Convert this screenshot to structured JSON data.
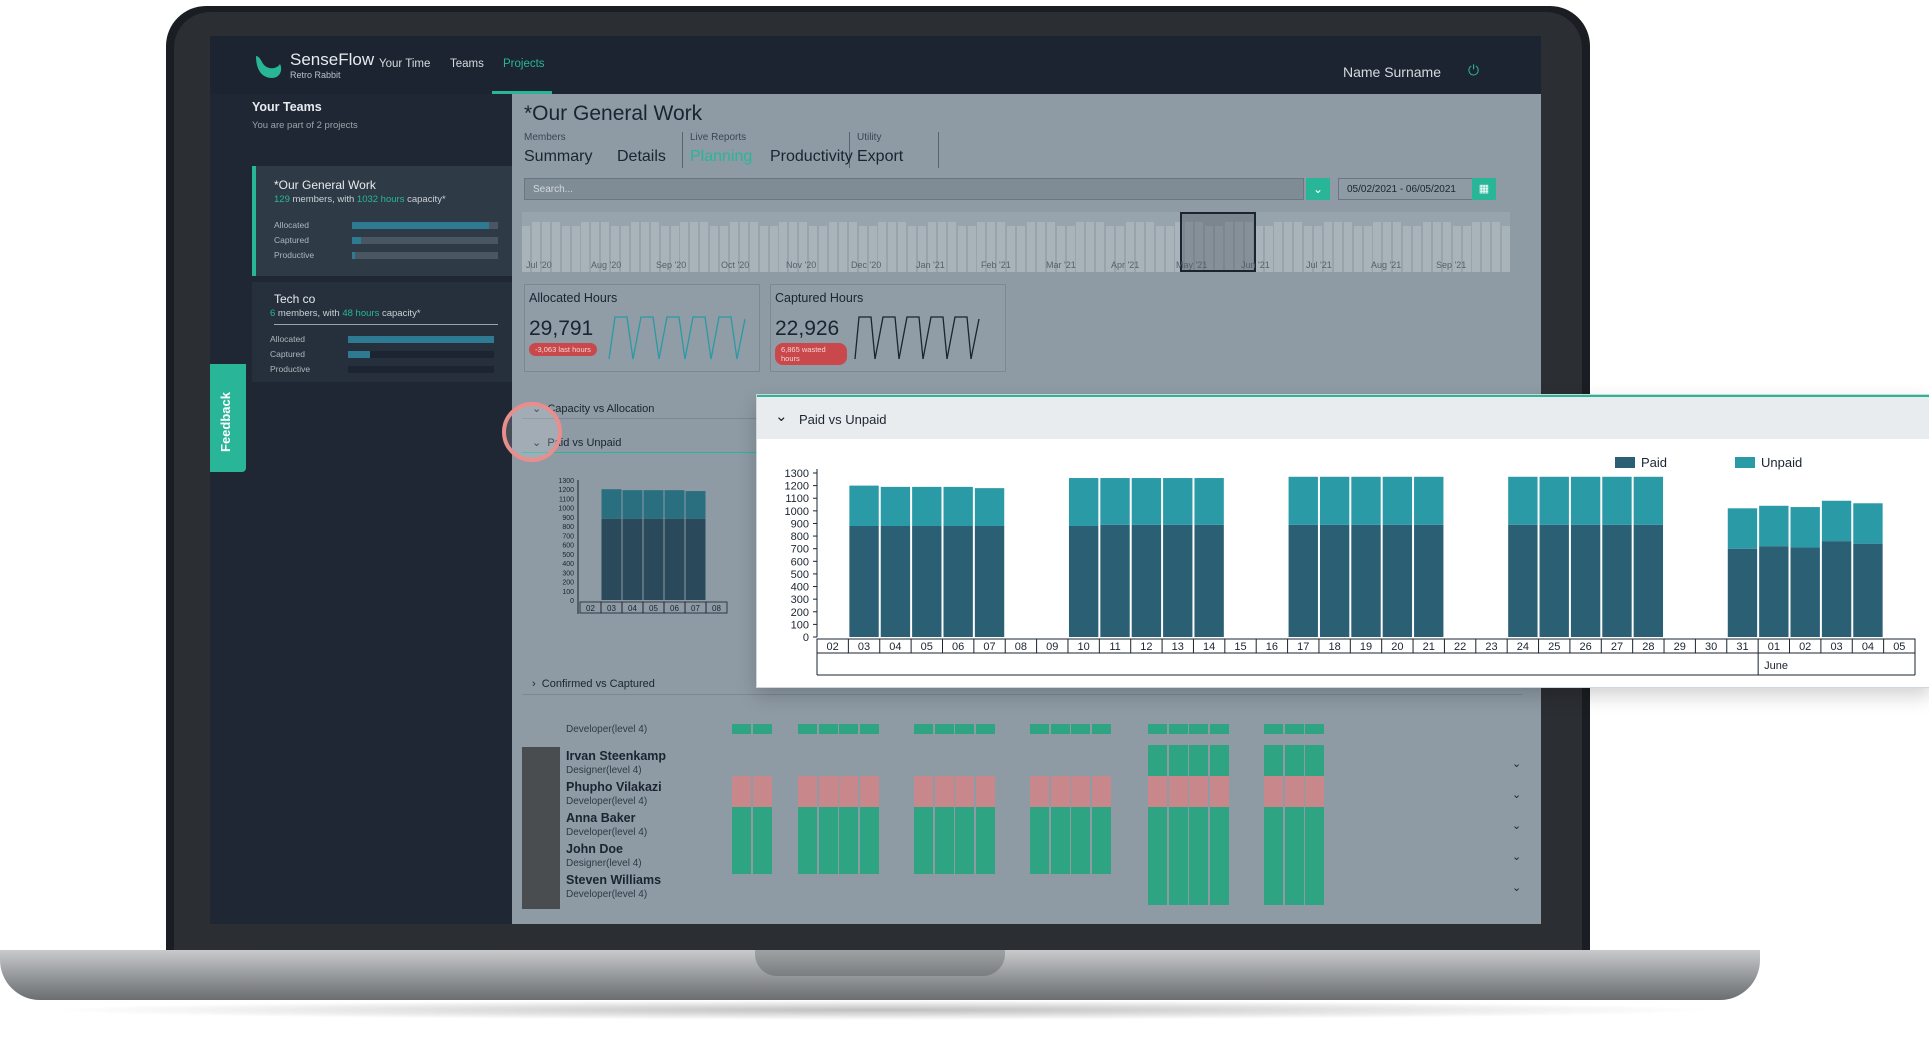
{
  "app": {
    "brand": "SenseFlow",
    "brand_sub": "Retro Rabbit",
    "nav": [
      "Your Time",
      "Teams",
      "Projects"
    ],
    "user": "Name Surname"
  },
  "sidebar": {
    "title": "Your Teams",
    "subtitle": "You are part of 2 projects",
    "teams": [
      {
        "name": "*Our General Work",
        "meta_prefix": "129",
        "meta_mid": " members, with ",
        "meta_hours": "1032 hours",
        "meta_suffix": " capacity*",
        "bars": [
          {
            "label": "Allocated",
            "level": 0.94
          },
          {
            "label": "Captured",
            "level": 0.06
          },
          {
            "label": "Productive",
            "level": 0.02
          }
        ]
      },
      {
        "name": "Tech co",
        "meta_prefix": "6",
        "meta_mid": " members, with ",
        "meta_hours": "48 hours",
        "meta_suffix": " capacity*",
        "bars": [
          {
            "label": "Allocated",
            "level": 1.0
          },
          {
            "label": "Captured",
            "level": 0.15
          },
          {
            "label": "Productive",
            "level": 0.0
          }
        ]
      }
    ],
    "feedback": "Feedback"
  },
  "main": {
    "title": "*Our General Work",
    "tab_groups": [
      "Members",
      "Live Reports",
      "Utility"
    ],
    "tabs": [
      "Summary",
      "Details",
      "Planning",
      "Productivity",
      "Export"
    ],
    "search_placeholder": "Search...",
    "date_range": "05/02/2021 - 06/05/2021",
    "timeline_labels": [
      "Jul '20",
      "Aug '20",
      "Sep '20",
      "Oct '20",
      "Nov '20",
      "Dec '20",
      "Jan '21",
      "Feb '21",
      "Mar '21",
      "Apr '21",
      "May '21",
      "Jun '21",
      "Jul '21",
      "Aug '21",
      "Sep '21"
    ],
    "stats": [
      {
        "title": "Allocated Hours",
        "value": "29,791",
        "pill": "-3,063 last hours"
      },
      {
        "title": "Captured Hours",
        "value": "22,926",
        "pill": "6,865 wasted hours"
      }
    ],
    "sections": [
      "Capacity vs Allocation",
      "Paid vs Unpaid",
      "Confirmed vs Captured"
    ],
    "members": [
      {
        "name": "",
        "role": "Developer(level 4)"
      },
      {
        "name": "Irvan Steenkamp",
        "role": "Designer(level 4)"
      },
      {
        "name": "Phupho Vilakazi",
        "role": "Developer(level 4)"
      },
      {
        "name": "Anna Baker",
        "role": "Developer(level 4)"
      },
      {
        "name": "John Doe",
        "role": "Designer(level 4)"
      },
      {
        "name": "Steven Williams",
        "role": "Developer(level 4)"
      }
    ]
  },
  "overlay": {
    "title": "Paid vs Unpaid"
  },
  "colors": {
    "accent": "#29b698",
    "paid": "#2b5f74",
    "unpaid": "#2a9aa6",
    "grid_green": "#2ea483",
    "grid_red": "#c8878a"
  },
  "chart_data": {
    "type": "bar",
    "stacked": true,
    "categories": [
      "02",
      "03",
      "04",
      "05",
      "06",
      "07",
      "08",
      "09",
      "10",
      "11",
      "12",
      "13",
      "14",
      "15",
      "16",
      "17",
      "18",
      "19",
      "20",
      "21",
      "22",
      "23",
      "24",
      "25",
      "26",
      "27",
      "28",
      "29",
      "30",
      "31",
      "01",
      "02",
      "03",
      "04",
      "05"
    ],
    "series": [
      {
        "name": "Paid",
        "values": [
          0,
          880,
          880,
          880,
          880,
          880,
          0,
          0,
          880,
          890,
          890,
          890,
          890,
          0,
          0,
          890,
          890,
          890,
          890,
          890,
          0,
          0,
          890,
          890,
          890,
          890,
          890,
          0,
          0,
          700,
          720,
          710,
          760,
          740,
          0
        ]
      },
      {
        "name": "Unpaid",
        "values": [
          0,
          320,
          310,
          310,
          310,
          300,
          0,
          0,
          380,
          370,
          370,
          370,
          370,
          0,
          0,
          380,
          380,
          380,
          380,
          380,
          0,
          0,
          380,
          380,
          380,
          380,
          380,
          0,
          0,
          320,
          320,
          320,
          320,
          320,
          0
        ]
      }
    ],
    "yticks": [
      0,
      100,
      200,
      300,
      400,
      500,
      600,
      700,
      800,
      900,
      1000,
      1100,
      1200,
      1300
    ],
    "ylim": [
      0,
      1300
    ],
    "month_label": "June",
    "legend_position": "top-right",
    "small_preview_categories": [
      "02",
      "03",
      "04",
      "05",
      "06",
      "07",
      "08"
    ]
  }
}
